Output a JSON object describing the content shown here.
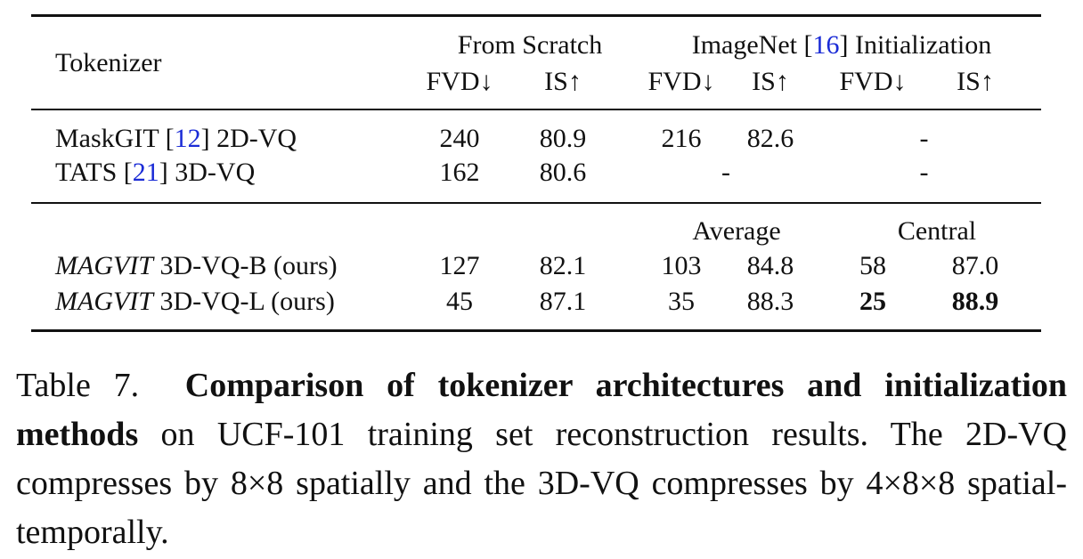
{
  "table": {
    "header": {
      "tokenizer": "Tokenizer",
      "from_scratch": "From Scratch",
      "imagenet": {
        "before": "ImageNet [",
        "ref": "16",
        "after": "] Initialization"
      },
      "columns": [
        "FVD↓",
        "IS↑",
        "FVD↓",
        "IS↑",
        "FVD↓",
        "IS↑"
      ]
    },
    "subheader": {
      "average": "Average",
      "central": "Central"
    },
    "rows": [
      {
        "name": {
          "before": "MaskGIT [",
          "ref": "12",
          "after": "] 2D-VQ"
        },
        "scratch": [
          "240",
          "80.9"
        ],
        "average": [
          "216",
          "82.6"
        ],
        "central": "-"
      },
      {
        "name": {
          "before": "TATS [",
          "ref": "21",
          "after": "] 3D-VQ"
        },
        "scratch": [
          "162",
          "80.6"
        ],
        "average": "-",
        "central": "-"
      },
      {
        "name": {
          "italic": "MAGVIT",
          "after": " 3D-VQ-B (ours)"
        },
        "scratch": [
          "127",
          "82.1"
        ],
        "average": [
          "103",
          "84.8"
        ],
        "central": [
          "58",
          "87.0"
        ]
      },
      {
        "name": {
          "italic": "MAGVIT",
          "after": " 3D-VQ-L (ours)"
        },
        "scratch": [
          "45",
          "87.1"
        ],
        "average": [
          "35",
          "88.3"
        ],
        "central": [
          "25",
          "88.9"
        ],
        "bold": "central"
      }
    ]
  },
  "caption": {
    "label": "Table 7.",
    "bold": "Comparison of tokenizer architectures and initialization methods",
    "text": "on UCF-101 training set reconstruction results. The 2D-VQ compresses by 8×8 spatially and the 3D-VQ compresses by 4×8×8 spatial-temporally."
  }
}
